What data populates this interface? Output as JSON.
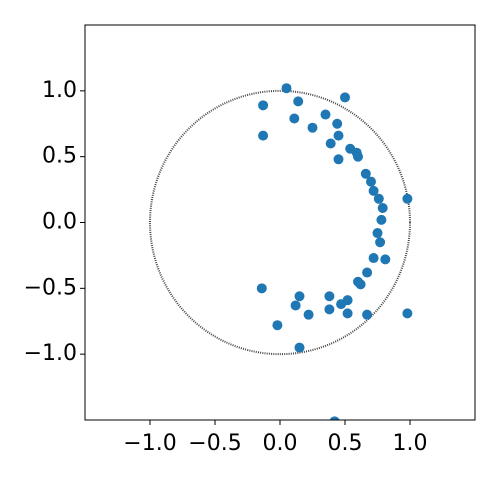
{
  "chart_data": {
    "type": "scatter",
    "series": [
      {
        "color": "#1f77b4",
        "x": [
          0.05,
          0.5,
          -0.13,
          0.14,
          0.35,
          0.11,
          0.44,
          0.25,
          -0.13,
          0.45,
          0.39,
          0.54,
          0.59,
          0.6,
          0.45,
          0.66,
          0.7,
          0.72,
          0.76,
          0.79,
          0.98,
          0.78,
          0.75,
          0.77,
          0.72,
          0.81,
          0.67,
          0.6,
          0.62,
          -0.14,
          0.38,
          0.15,
          0.52,
          0.47,
          0.12,
          0.38,
          0.22,
          0.52,
          0.67,
          0.98,
          -0.02,
          0.15,
          0.42
        ],
        "values": [
          1.02,
          0.95,
          0.89,
          0.92,
          0.82,
          0.79,
          0.75,
          0.72,
          0.66,
          0.66,
          0.6,
          0.56,
          0.53,
          0.5,
          0.48,
          0.37,
          0.31,
          0.24,
          0.18,
          0.11,
          0.18,
          0.02,
          -0.08,
          -0.15,
          -0.27,
          -0.28,
          -0.38,
          -0.45,
          -0.47,
          -0.5,
          -0.56,
          -0.56,
          -0.59,
          -0.62,
          -0.63,
          -0.66,
          -0.7,
          -0.69,
          -0.7,
          -0.69,
          -0.78,
          -0.95,
          -1.51
        ]
      }
    ],
    "unit_circle": {
      "radius": 1,
      "color": "#444444"
    },
    "xlim": [
      -1.5,
      1.5
    ],
    "ylim": [
      -1.5,
      1.5
    ],
    "xticks": [
      {
        "value": -1,
        "label": "−1.0"
      },
      {
        "value": -0.5,
        "label": "−0.5"
      },
      {
        "value": 0,
        "label": "0.0"
      },
      {
        "value": 0.5,
        "label": "0.5"
      },
      {
        "value": 1,
        "label": "1.0"
      }
    ],
    "yticks": [
      {
        "value": -1,
        "label": "−1.0"
      },
      {
        "value": -0.5,
        "label": "−0.5"
      },
      {
        "value": 0,
        "label": "0.0"
      },
      {
        "value": 0.5,
        "label": "0.5"
      },
      {
        "value": 1,
        "label": "1.0"
      }
    ]
  }
}
